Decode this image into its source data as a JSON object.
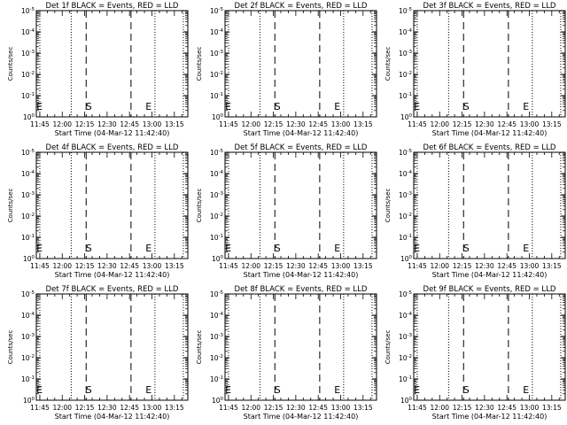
{
  "page": {
    "background": "#ffffff",
    "foreground": "#000000"
  },
  "chart_data": [
    {
      "type": "line",
      "title": "Det 1f BLACK = Events, RED = LLD",
      "xlabel": "Start Time (04-Mar-12 11:42:40)",
      "ylabel": "Counts/sec",
      "x_ticks": [
        "11:45",
        "12:00",
        "12:15",
        "12:30",
        "12:45",
        "13:00",
        "13:15"
      ],
      "x_range": [
        "11:42:40",
        "13:24:00"
      ],
      "y_scale": "log",
      "y_ticks": [
        "10^0",
        "10^-1",
        "10^-2",
        "10^-3",
        "10^-4",
        "10^-5"
      ],
      "vlines_dotted": [
        "11:45",
        "12:06",
        "13:02",
        "13:21"
      ],
      "vlines_dashed": [
        "12:16",
        "12:46"
      ],
      "markers": [
        {
          "label": "E",
          "x": "11:43"
        },
        {
          "label": "S",
          "x": "12:16"
        },
        {
          "label": "E",
          "x": "12:56"
        }
      ],
      "series": []
    },
    {
      "type": "line",
      "title": "Det 2f BLACK = Events, RED = LLD",
      "xlabel": "Start Time (04-Mar-12 11:42:40)",
      "ylabel": "Counts/sec",
      "x_ticks": [
        "11:45",
        "12:00",
        "12:15",
        "12:30",
        "12:45",
        "13:00",
        "13:15"
      ],
      "x_range": [
        "11:42:40",
        "13:24:00"
      ],
      "y_scale": "log",
      "y_ticks": [
        "10^0",
        "10^-1",
        "10^-2",
        "10^-3",
        "10^-4",
        "10^-5"
      ],
      "vlines_dotted": [
        "11:45",
        "12:06",
        "13:02",
        "13:21"
      ],
      "vlines_dashed": [
        "12:16",
        "12:46"
      ],
      "markers": [
        {
          "label": "E",
          "x": "11:43"
        },
        {
          "label": "S",
          "x": "12:16"
        },
        {
          "label": "E",
          "x": "12:56"
        }
      ],
      "series": []
    },
    {
      "type": "line",
      "title": "Det 3f BLACK = Events, RED = LLD",
      "xlabel": "Start Time (04-Mar-12 11:42:40)",
      "ylabel": "Counts/sec",
      "x_ticks": [
        "11:45",
        "12:00",
        "12:15",
        "12:30",
        "12:45",
        "13:00",
        "13:15"
      ],
      "x_range": [
        "11:42:40",
        "13:24:00"
      ],
      "y_scale": "log",
      "y_ticks": [
        "10^0",
        "10^-1",
        "10^-2",
        "10^-3",
        "10^-4",
        "10^-5"
      ],
      "vlines_dotted": [
        "11:45",
        "12:06",
        "13:02",
        "13:21"
      ],
      "vlines_dashed": [
        "12:16",
        "12:46"
      ],
      "markers": [
        {
          "label": "E",
          "x": "11:43"
        },
        {
          "label": "S",
          "x": "12:16"
        },
        {
          "label": "E",
          "x": "12:56"
        }
      ],
      "series": []
    },
    {
      "type": "line",
      "title": "Det 4f BLACK = Events, RED = LLD",
      "xlabel": "Start Time (04-Mar-12 11:42:40)",
      "ylabel": "Counts/sec",
      "x_ticks": [
        "11:45",
        "12:00",
        "12:15",
        "12:30",
        "12:45",
        "13:00",
        "13:15"
      ],
      "x_range": [
        "11:42:40",
        "13:24:00"
      ],
      "y_scale": "log",
      "y_ticks": [
        "10^0",
        "10^-1",
        "10^-2",
        "10^-3",
        "10^-4",
        "10^-5"
      ],
      "vlines_dotted": [
        "11:45",
        "12:06",
        "13:02",
        "13:21"
      ],
      "vlines_dashed": [
        "12:16",
        "12:46"
      ],
      "markers": [
        {
          "label": "E",
          "x": "11:43"
        },
        {
          "label": "S",
          "x": "12:16"
        },
        {
          "label": "E",
          "x": "12:56"
        }
      ],
      "series": []
    },
    {
      "type": "line",
      "title": "Det 5f BLACK = Events, RED = LLD",
      "xlabel": "Start Time (04-Mar-12 11:42:40)",
      "ylabel": "Counts/sec",
      "x_ticks": [
        "11:45",
        "12:00",
        "12:15",
        "12:30",
        "12:45",
        "13:00",
        "13:15"
      ],
      "x_range": [
        "11:42:40",
        "13:24:00"
      ],
      "y_scale": "log",
      "y_ticks": [
        "10^0",
        "10^-1",
        "10^-2",
        "10^-3",
        "10^-4",
        "10^-5"
      ],
      "vlines_dotted": [
        "11:45",
        "12:06",
        "13:02",
        "13:21"
      ],
      "vlines_dashed": [
        "12:16",
        "12:46"
      ],
      "markers": [
        {
          "label": "E",
          "x": "11:43"
        },
        {
          "label": "S",
          "x": "12:16"
        },
        {
          "label": "E",
          "x": "12:56"
        }
      ],
      "series": []
    },
    {
      "type": "line",
      "title": "Det 6f BLACK = Events, RED = LLD",
      "xlabel": "Start Time (04-Mar-12 11:42:40)",
      "ylabel": "Counts/sec",
      "x_ticks": [
        "11:45",
        "12:00",
        "12:15",
        "12:30",
        "12:45",
        "13:00",
        "13:15"
      ],
      "x_range": [
        "11:42:40",
        "13:24:00"
      ],
      "y_scale": "log",
      "y_ticks": [
        "10^0",
        "10^-1",
        "10^-2",
        "10^-3",
        "10^-4",
        "10^-5"
      ],
      "vlines_dotted": [
        "11:45",
        "12:06",
        "13:02",
        "13:21"
      ],
      "vlines_dashed": [
        "12:16",
        "12:46"
      ],
      "markers": [
        {
          "label": "E",
          "x": "11:43"
        },
        {
          "label": "S",
          "x": "12:16"
        },
        {
          "label": "E",
          "x": "12:56"
        }
      ],
      "series": []
    },
    {
      "type": "line",
      "title": "Det 7f BLACK = Events, RED = LLD",
      "xlabel": "Start Time (04-Mar-12 11:42:40)",
      "ylabel": "Counts/sec",
      "x_ticks": [
        "11:45",
        "12:00",
        "12:15",
        "12:30",
        "12:45",
        "13:00",
        "13:15"
      ],
      "x_range": [
        "11:42:40",
        "13:24:00"
      ],
      "y_scale": "log",
      "y_ticks": [
        "10^0",
        "10^-1",
        "10^-2",
        "10^-3",
        "10^-4",
        "10^-5"
      ],
      "vlines_dotted": [
        "11:45",
        "12:06",
        "13:02",
        "13:21"
      ],
      "vlines_dashed": [
        "12:16",
        "12:46"
      ],
      "markers": [
        {
          "label": "E",
          "x": "11:43"
        },
        {
          "label": "S",
          "x": "12:16"
        },
        {
          "label": "E",
          "x": "12:56"
        }
      ],
      "series": []
    },
    {
      "type": "line",
      "title": "Det 8f BLACK = Events, RED = LLD",
      "xlabel": "Start Time (04-Mar-12 11:42:40)",
      "ylabel": "Counts/sec",
      "x_ticks": [
        "11:45",
        "12:00",
        "12:15",
        "12:30",
        "12:45",
        "13:00",
        "13:15"
      ],
      "x_range": [
        "11:42:40",
        "13:24:00"
      ],
      "y_scale": "log",
      "y_ticks": [
        "10^0",
        "10^-1",
        "10^-2",
        "10^-3",
        "10^-4",
        "10^-5"
      ],
      "vlines_dotted": [
        "11:45",
        "12:06",
        "13:02",
        "13:21"
      ],
      "vlines_dashed": [
        "12:16",
        "12:46"
      ],
      "markers": [
        {
          "label": "E",
          "x": "11:43"
        },
        {
          "label": "S",
          "x": "12:16"
        },
        {
          "label": "E",
          "x": "12:56"
        }
      ],
      "series": []
    },
    {
      "type": "line",
      "title": "Det 9f BLACK = Events, RED = LLD",
      "xlabel": "Start Time (04-Mar-12 11:42:40)",
      "ylabel": "Counts/sec",
      "x_ticks": [
        "11:45",
        "12:00",
        "12:15",
        "12:30",
        "12:45",
        "13:00",
        "13:15"
      ],
      "x_range": [
        "11:42:40",
        "13:24:00"
      ],
      "y_scale": "log",
      "y_ticks": [
        "10^0",
        "10^-1",
        "10^-2",
        "10^-3",
        "10^-4",
        "10^-5"
      ],
      "vlines_dotted": [
        "11:45",
        "12:06",
        "13:02",
        "13:21"
      ],
      "vlines_dashed": [
        "12:16",
        "12:46"
      ],
      "markers": [
        {
          "label": "E",
          "x": "11:43"
        },
        {
          "label": "S",
          "x": "12:16"
        },
        {
          "label": "E",
          "x": "12:56"
        }
      ],
      "series": []
    }
  ]
}
